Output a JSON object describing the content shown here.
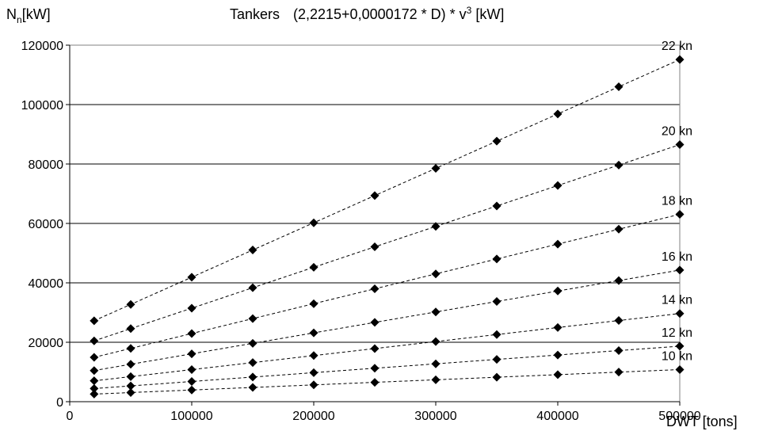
{
  "chart_data": {
    "type": "scatter",
    "title": "Tankers",
    "formula_text": "(2,2215+0,0000172 * D) * v",
    "formula_superscript": "3",
    "formula_unit": " [kW]",
    "ylabel_main": "N",
    "ylabel_subscript": "n",
    "ylabel_unit": "[kW]",
    "xlabel": "DWT [tons]",
    "xlim": [
      0,
      500000
    ],
    "ylim": [
      0,
      120000
    ],
    "x_ticks": [
      0,
      100000,
      200000,
      300000,
      400000,
      500000
    ],
    "y_ticks": [
      0,
      20000,
      40000,
      60000,
      80000,
      100000,
      120000
    ],
    "grid": "horizontal",
    "line_style": "dashed",
    "marker": "diamond",
    "x": [
      20000,
      50000,
      100000,
      150000,
      200000,
      250000,
      300000,
      350000,
      400000,
      450000,
      500000
    ],
    "series": [
      {
        "name": "10 kn",
        "values": [
          2559,
          3075,
          3935,
          4795,
          5655,
          6515,
          7375,
          8235,
          9095,
          9955,
          10815
        ]
      },
      {
        "name": "12 kn",
        "values": [
          4422,
          5313,
          6800,
          8286,
          9772,
          11258,
          12744,
          14230,
          15716,
          17203,
          18689
        ]
      },
      {
        "name": "14 kn",
        "values": [
          7021,
          8437,
          10797,
          13157,
          15517,
          17877,
          20237,
          22597,
          24957,
          27317,
          29677
        ]
      },
      {
        "name": "16 kn",
        "values": [
          10481,
          12594,
          16116,
          19639,
          23162,
          26685,
          30207,
          33730,
          37253,
          40776,
          44299
        ]
      },
      {
        "name": "18 kn",
        "values": [
          14922,
          17931,
          22946,
          27962,
          32978,
          37993,
          43009,
          48025,
          53040,
          58056,
          63072
        ]
      },
      {
        "name": "20 kn",
        "values": [
          20469,
          24597,
          31477,
          38357,
          45237,
          52117,
          58997,
          65877,
          72757,
          79637,
          86517
        ]
      },
      {
        "name": "22 kn",
        "values": [
          27244,
          32739,
          41897,
          51054,
          60212,
          69370,
          78525,
          87686,
          96843,
          106001,
          115159
        ]
      }
    ]
  }
}
